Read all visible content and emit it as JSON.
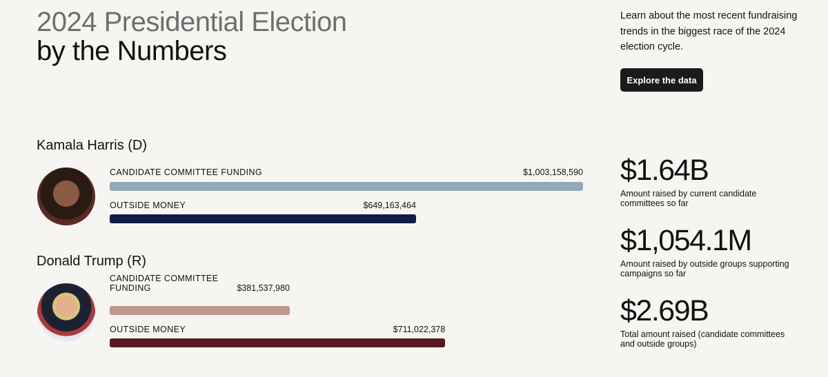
{
  "header": {
    "title_line1": "2024 Presidential Election",
    "title_line2": "by the Numbers",
    "intro": "Learn about the most recent fundraising trends in the biggest race of the 2024 election cycle.",
    "button": "Explore the data"
  },
  "candidates": [
    {
      "name": "Kamala Harris (D)",
      "labels": [
        "CANDIDATE COMMITTEE FUNDING",
        "OUTSIDE MONEY"
      ],
      "values": [
        1003158590,
        649163464
      ],
      "value_labels": [
        "$1,003,158,590",
        "$649,163,464"
      ],
      "colors": [
        "#93a9b8",
        "#101d46"
      ]
    },
    {
      "name": "Donald Trump (R)",
      "labels": [
        "CANDIDATE COMMITTEE FUNDING",
        "OUTSIDE MONEY"
      ],
      "values": [
        381537980,
        711022378
      ],
      "value_labels": [
        "$381,537,980",
        "$711,022,378"
      ],
      "colors": [
        "#bf978b",
        "#5a1621"
      ]
    }
  ],
  "stats": [
    {
      "value": "$1.64B",
      "description": "Amount raised by current candidate committees so far"
    },
    {
      "value": "$1,054.1M",
      "description": "Amount raised by outside groups supporting campaigns so far"
    },
    {
      "value": "$2.69B",
      "description": "Total amount raised (candidate committees and outside groups)"
    }
  ]
}
